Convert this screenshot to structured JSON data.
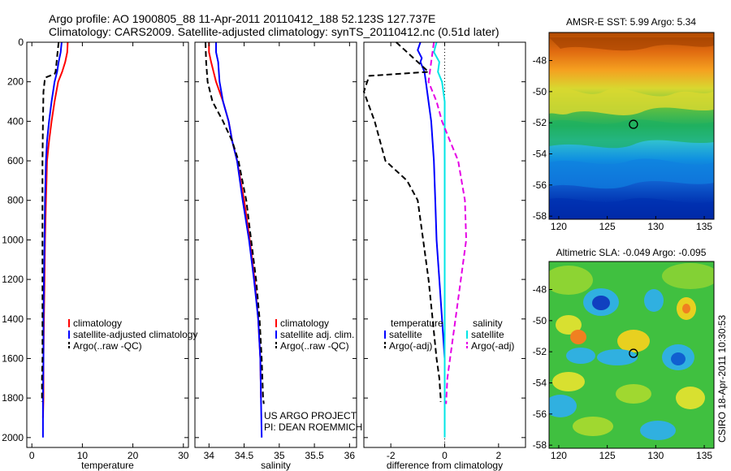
{
  "header": {
    "line1": "Argo profile: AO 1900805_88 11-Apr-2011 20110412_188 52.123S 127.737E",
    "line2": "Climatology: CARS2009. Satellite-adjusted climatology: synTS_20110412.nc (0.51d later)"
  },
  "side_label": "CSIRO 18-Apr-2011 10:30:53",
  "colors": {
    "climatology": "#ff0000",
    "satellite": "#0000ff",
    "argo": "#000000",
    "sal_sat": "#00e5e5",
    "sal_argo": "#e500e5"
  },
  "chart_data": [
    {
      "id": "temperature",
      "type": "line",
      "xlabel": "temperature",
      "xlim": [
        -1,
        31
      ],
      "ylim": [
        0,
        2050
      ],
      "y_reversed": true,
      "xticks": [
        0,
        10,
        20,
        30
      ],
      "yticks": [
        0,
        200,
        400,
        600,
        800,
        1000,
        1200,
        1400,
        1600,
        1800,
        2000
      ],
      "legend": [
        "climatology",
        "satellite-adjusted climatology",
        "Argo(..raw -QC)"
      ],
      "series": [
        {
          "name": "climatology",
          "style": "solid",
          "color": "#ff0000",
          "x": [
            7.1,
            7.0,
            6.6,
            6.0,
            5.2,
            4.5,
            3.9,
            3.4,
            3.0,
            2.8,
            2.6,
            2.5,
            2.4,
            2.3,
            2.3,
            2.2
          ],
          "y": [
            0,
            50,
            100,
            150,
            200,
            300,
            400,
            500,
            600,
            800,
            1000,
            1200,
            1400,
            1600,
            1800,
            1900
          ]
        },
        {
          "name": "satellite-adjusted climatology",
          "style": "solid",
          "color": "#0000ff",
          "x": [
            5.9,
            5.7,
            5.3,
            5.0,
            4.5,
            3.9,
            3.4,
            3.0,
            2.8,
            2.6,
            2.5,
            2.4,
            2.3,
            2.3,
            2.2,
            2.2
          ],
          "y": [
            0,
            50,
            100,
            150,
            200,
            300,
            400,
            500,
            600,
            800,
            1000,
            1200,
            1400,
            1600,
            1800,
            2000
          ]
        },
        {
          "name": "Argo(..raw -QC)",
          "style": "dashed",
          "color": "#000000",
          "x": [
            5.3,
            5.1,
            4.9,
            4.7,
            4.5,
            2.6,
            2.3,
            2.2,
            2.1,
            2.1,
            2.1,
            2.1,
            2.1,
            2.1,
            2.0,
            2.0,
            2.0
          ],
          "y": [
            0,
            50,
            100,
            150,
            160,
            180,
            250,
            400,
            600,
            800,
            1000,
            1200,
            1400,
            1600,
            1700,
            1800,
            1820
          ]
        }
      ]
    },
    {
      "id": "salinity",
      "type": "line",
      "xlabel": "salinity",
      "xlim": [
        33.8,
        36.1
      ],
      "ylim": [
        0,
        2050
      ],
      "y_reversed": true,
      "xticks": [
        34,
        34.5,
        35,
        35.5,
        36
      ],
      "legend": [
        "climatology",
        "satellite adj. clim.",
        "Argo(..raw -QC)"
      ],
      "annotation": [
        "US ARGO PROJECT",
        "PI: DEAN ROEMMICH"
      ],
      "series": [
        {
          "name": "climatology",
          "style": "solid",
          "color": "#ff0000",
          "x": [
            34.0,
            34.0,
            34.03,
            34.1,
            34.2,
            34.28,
            34.33,
            34.4,
            34.5,
            34.58,
            34.65,
            34.7,
            34.73,
            34.74
          ],
          "y": [
            0,
            50,
            100,
            200,
            300,
            400,
            500,
            600,
            800,
            1000,
            1200,
            1400,
            1600,
            1800
          ]
        },
        {
          "name": "satellite adj. clim.",
          "style": "solid",
          "color": "#0000ff",
          "x": [
            34.1,
            34.1,
            34.13,
            34.15,
            34.2,
            34.28,
            34.33,
            34.4,
            34.48,
            34.57,
            34.64,
            34.7,
            34.73,
            34.74,
            34.75
          ],
          "y": [
            0,
            50,
            100,
            200,
            300,
            400,
            500,
            600,
            800,
            1000,
            1200,
            1400,
            1600,
            1800,
            2000
          ]
        },
        {
          "name": "Argo(..raw -QC)",
          "style": "dashed",
          "color": "#000000",
          "x": [
            33.95,
            33.96,
            33.98,
            34.05,
            34.2,
            34.33,
            34.42,
            34.53,
            34.6,
            34.67,
            34.72,
            34.75,
            34.77,
            34.78
          ],
          "y": [
            0,
            100,
            200,
            300,
            400,
            500,
            600,
            800,
            1000,
            1200,
            1400,
            1600,
            1800,
            1830
          ]
        }
      ]
    },
    {
      "id": "difference",
      "type": "line",
      "xlabel": "difference from climatology",
      "xlim": [
        -3.0,
        3.0
      ],
      "ylim": [
        0,
        2050
      ],
      "y_reversed": true,
      "xticks": [
        -2,
        0,
        2
      ],
      "zero_line": 0,
      "legend_left": {
        "title": "temperature",
        "items": [
          "satellite",
          "Argo(-adj)"
        ]
      },
      "legend_right": {
        "title": "salinity",
        "items": [
          "satellite",
          "Argo(-adj)"
        ]
      },
      "series": [
        {
          "name": "temperature satellite",
          "style": "solid",
          "color": "#0000ff",
          "x": [
            -0.9,
            -1.0,
            -0.85,
            -0.9,
            -0.75,
            -0.7,
            -0.5,
            -0.4,
            -0.35,
            -0.3,
            -0.2,
            -0.1,
            0.0,
            0.0
          ],
          "y": [
            0,
            40,
            80,
            100,
            150,
            200,
            400,
            600,
            800,
            1000,
            1200,
            1400,
            1600,
            1800
          ]
        },
        {
          "name": "temperature Argo(-adj)",
          "style": "dashed",
          "color": "#000000",
          "x": [
            -1.8,
            -0.6,
            -2.8,
            -3.0,
            -2.6,
            -2.2,
            -1.4,
            -1.0,
            -0.8,
            -0.6,
            -0.45,
            -0.3,
            -0.2,
            -0.15,
            -0.15
          ],
          "y": [
            0,
            150,
            170,
            250,
            400,
            600,
            700,
            800,
            1000,
            1200,
            1400,
            1600,
            1700,
            1800,
            1820
          ]
        },
        {
          "name": "salinity satellite",
          "style": "solid",
          "color": "#00e5e5",
          "x": [
            -0.3,
            -0.4,
            -0.2,
            -0.25,
            -0.1,
            0.0,
            0.0,
            0.0,
            0.0,
            0.0,
            0.0,
            0.0,
            0.0,
            0.0
          ],
          "y": [
            0,
            50,
            100,
            150,
            200,
            300,
            400,
            600,
            800,
            1000,
            1200,
            1400,
            1800,
            2000
          ]
        },
        {
          "name": "salinity Argo(-adj)",
          "style": "dashed",
          "color": "#e500e5",
          "x": [
            -0.4,
            -0.5,
            -0.6,
            -0.3,
            -0.1,
            0.2,
            0.5,
            0.75,
            0.8,
            0.6,
            0.4,
            0.2,
            0.1,
            0.05
          ],
          "y": [
            0,
            100,
            200,
            300,
            400,
            500,
            600,
            800,
            1000,
            1200,
            1400,
            1600,
            1700,
            1830
          ]
        }
      ]
    },
    {
      "id": "sst-map",
      "type": "heatmap",
      "title": "AMSR-E SST: 5.99 Argo: 5.34",
      "xlim": [
        119,
        136
      ],
      "ylim": [
        -58.2,
        -46.2
      ],
      "xticks": [
        120,
        125,
        130,
        135
      ],
      "yticks": [
        -48,
        -50,
        -52,
        -54,
        -56,
        -58
      ],
      "marker": {
        "lon": 127.7,
        "lat": -52.1
      }
    },
    {
      "id": "sla-map",
      "type": "heatmap",
      "title": "Altimetric SLA: -0.049 Argo: -0.095",
      "xlim": [
        119,
        136
      ],
      "ylim": [
        -58.2,
        -46.2
      ],
      "xticks": [
        120,
        125,
        130,
        135
      ],
      "yticks": [
        -48,
        -50,
        -52,
        -54,
        -56,
        -58
      ],
      "marker": {
        "lon": 127.7,
        "lat": -52.1
      }
    }
  ]
}
